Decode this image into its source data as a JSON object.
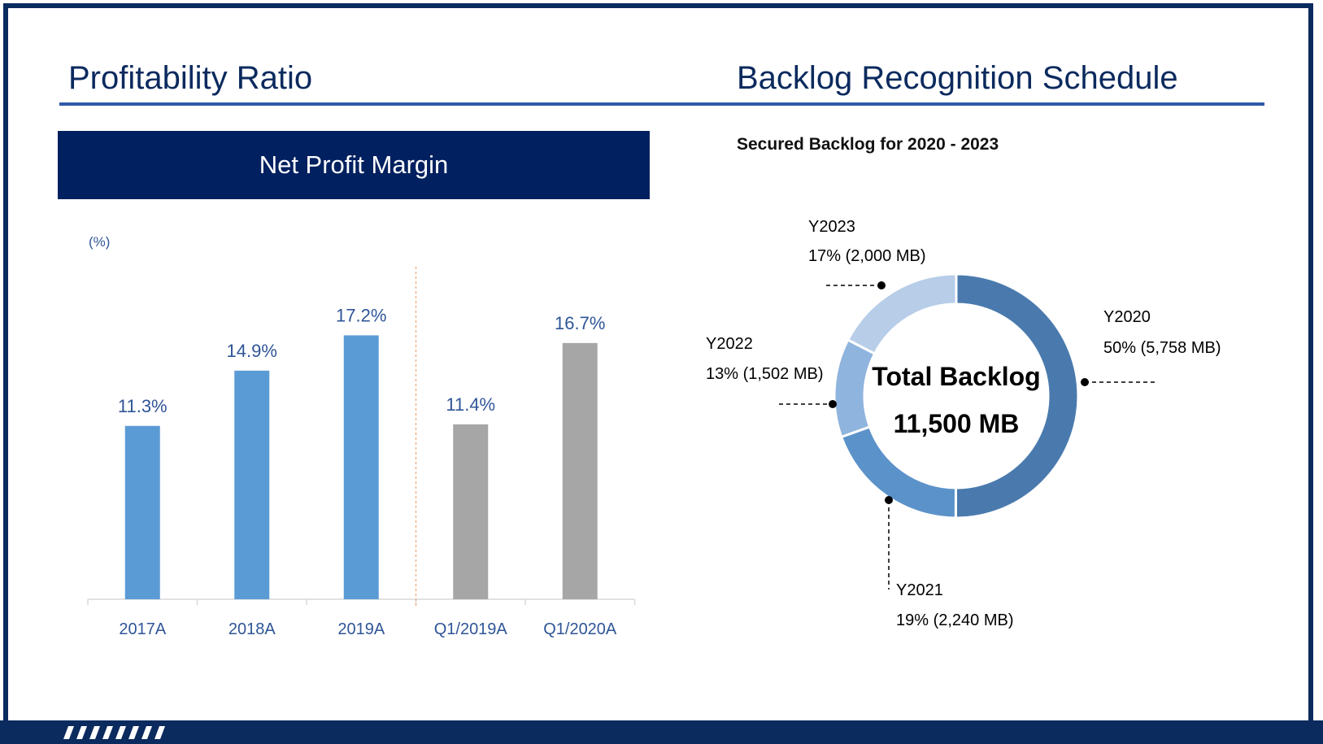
{
  "left_title": "Profitability Ratio",
  "right_title": "Backlog Recognition Schedule",
  "banner": "Net Profit Margin",
  "backlog_subtitle": "Secured Backlog for 2020 - 2023",
  "colors": {
    "navy": "#0b2a5e",
    "banner": "#002060",
    "rule": "#2e5aa8",
    "bar_actual": "#5b9bd5",
    "bar_quarter": "#a6a6a6",
    "divider": "#f4b183",
    "label_text": "#2f5597"
  },
  "chart_data": [
    {
      "type": "bar",
      "ylabel": "(%)",
      "categories": [
        "2017A",
        "2018A",
        "2019A",
        "Q1/2019A",
        "Q1/2020A"
      ],
      "values": [
        11.3,
        14.9,
        17.2,
        11.4,
        16.7
      ],
      "data_labels": [
        "11.3%",
        "14.9%",
        "17.2%",
        "11.4%",
        "16.7%"
      ],
      "bar_colors": [
        "#5b9bd5",
        "#5b9bd5",
        "#5b9bd5",
        "#a6a6a6",
        "#a6a6a6"
      ],
      "divider_after_index": 2,
      "grid": false
    },
    {
      "type": "pie",
      "center_label": [
        "Total Backlog",
        "11,500 MB"
      ],
      "total": 11500,
      "slices": [
        {
          "name": "Y2020",
          "value": 5758,
          "label": "50% (5,758 MB)",
          "color": "#4a7aad"
        },
        {
          "name": "Y2021",
          "value": 2240,
          "label": "19% (2,240 MB)",
          "color": "#5b92c9"
        },
        {
          "name": "Y2022",
          "value": 1502,
          "label": "13% (1,502 MB)",
          "color": "#8fb4de"
        },
        {
          "name": "Y2023",
          "value": 2000,
          "label": "17% (2,000 MB)",
          "color": "#b7cde8"
        }
      ]
    }
  ]
}
